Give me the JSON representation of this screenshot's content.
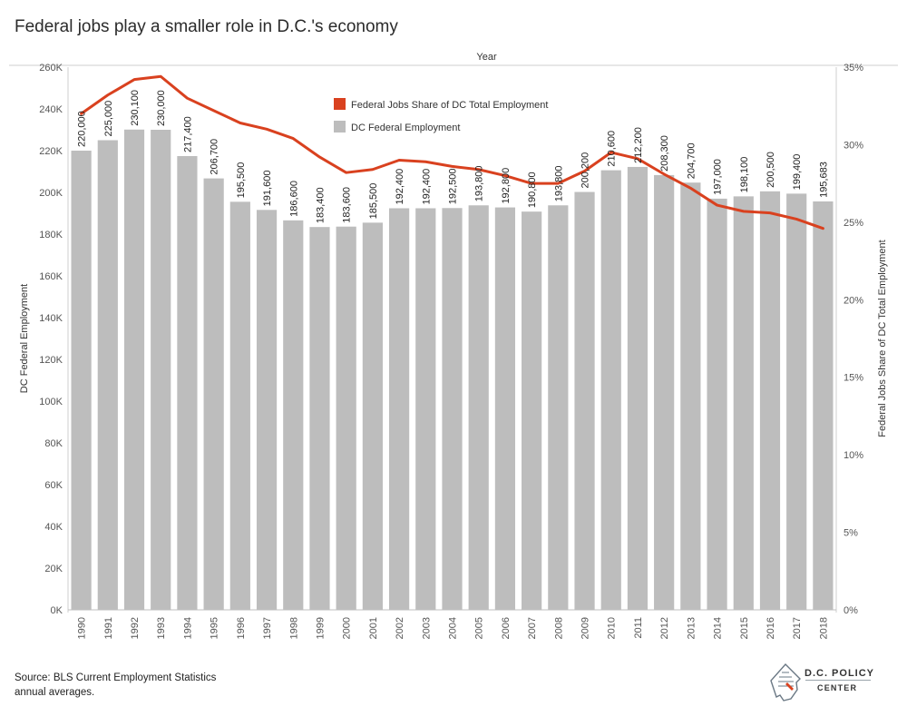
{
  "title": "Federal jobs play a smaller role in D.C.'s economy",
  "source_line1": "Source: BLS Current Employment Statistics",
  "source_line2": "annual averages.",
  "logo": {
    "line1": "D.C. POLICY",
    "line2": "CENTER"
  },
  "colors": {
    "bar": "#bdbdbd",
    "line": "#d9411f",
    "grid": "#d4d4d4",
    "axis_text": "#555555"
  },
  "chart_data": {
    "type": "bar",
    "title": "Federal jobs play a smaller role in D.C.'s economy",
    "xlabel": "Year",
    "ylabel": "DC Federal Employment",
    "y2label": "Federal Jobs Share of DC Total Employment",
    "categories": [
      "1990",
      "1991",
      "1992",
      "1993",
      "1994",
      "1995",
      "1996",
      "1997",
      "1998",
      "1999",
      "2000",
      "2001",
      "2002",
      "2003",
      "2004",
      "2005",
      "2006",
      "2007",
      "2008",
      "2009",
      "2010",
      "2011",
      "2012",
      "2013",
      "2014",
      "2015",
      "2016",
      "2017",
      "2018"
    ],
    "ylim": [
      0,
      260000
    ],
    "yticks": [
      "0K",
      "20K",
      "40K",
      "60K",
      "80K",
      "100K",
      "120K",
      "140K",
      "160K",
      "180K",
      "200K",
      "220K",
      "240K",
      "260K"
    ],
    "y2lim": [
      0,
      35
    ],
    "y2ticks": [
      "0%",
      "5%",
      "10%",
      "15%",
      "20%",
      "25%",
      "30%",
      "35%"
    ],
    "legend_position": "top-center",
    "series": [
      {
        "name": "DC Federal Employment",
        "type": "bar",
        "axis": "left",
        "values": [
          220000,
          225000,
          230100,
          230000,
          217400,
          206700,
          195500,
          191600,
          186600,
          183400,
          183600,
          185500,
          192400,
          192400,
          192500,
          193800,
          192800,
          190800,
          193800,
          200200,
          210600,
          212200,
          208300,
          204700,
          197000,
          198100,
          200500,
          199400,
          195683
        ],
        "labels": [
          "220,000",
          "225,000",
          "230,100",
          "230,000",
          "217,400",
          "206,700",
          "195,500",
          "191,600",
          "186,600",
          "183,400",
          "183,600",
          "185,500",
          "192,400",
          "192,400",
          "192,500",
          "193,800",
          "192,800",
          "190,800",
          "193,800",
          "200,200",
          "210,600",
          "212,200",
          "208,300",
          "204,700",
          "197,000",
          "198,100",
          "200,500",
          "199,400",
          "195,683"
        ]
      },
      {
        "name": "Federal Jobs Share of DC Total Employment",
        "type": "line",
        "axis": "right",
        "values": [
          32.0,
          33.2,
          34.2,
          34.4,
          33.0,
          32.2,
          31.4,
          31.0,
          30.4,
          29.2,
          28.2,
          28.4,
          29.0,
          28.9,
          28.6,
          28.4,
          28.0,
          27.5,
          27.5,
          28.3,
          29.5,
          29.1,
          28.1,
          27.2,
          26.1,
          25.7,
          25.6,
          25.2,
          24.6
        ]
      }
    ]
  }
}
